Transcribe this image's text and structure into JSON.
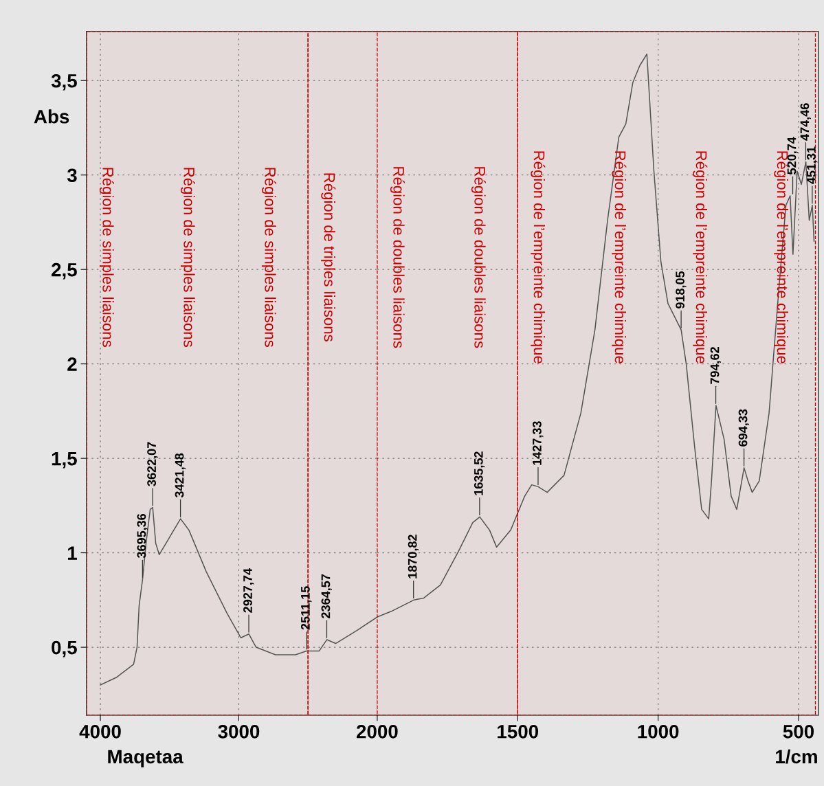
{
  "chart_data": [
    {
      "type": "line",
      "xlabel": "Maqetaa",
      "ylabel": "Abs",
      "xlim": [
        4100,
        2000
      ],
      "xticks": [
        4000,
        3000,
        2000
      ],
      "ylim": [
        0.14,
        3.76
      ],
      "yticks": [
        {
          "value": 0.5,
          "label": "0,5"
        },
        {
          "value": 1,
          "label": "1"
        },
        {
          "value": 1.5,
          "label": "1,5"
        },
        {
          "value": 2,
          "label": "2"
        },
        {
          "value": 2.5,
          "label": "2,5"
        },
        {
          "value": 3,
          "label": "3"
        },
        {
          "value": 3.5,
          "label": "3,5"
        }
      ],
      "grid": true,
      "x": [
        4000,
        3885,
        3760,
        3735,
        3720,
        3695,
        3670,
        3640,
        3622,
        3600,
        3575,
        3510,
        3421,
        3360,
        3235,
        3085,
        2985,
        2927,
        2875,
        2735,
        2590,
        2511,
        2420,
        2364,
        2300,
        2145,
        2000
      ],
      "series": [
        {
          "color": "#555555",
          "values": [
            0.3,
            0.34,
            0.41,
            0.5,
            0.72,
            0.86,
            1.05,
            1.23,
            1.24,
            1.05,
            0.99,
            1.07,
            1.18,
            1.12,
            0.9,
            0.68,
            0.55,
            0.57,
            0.5,
            0.46,
            0.46,
            0.48,
            0.48,
            0.54,
            0.52,
            0.59,
            0.66
          ]
        }
      ],
      "bands": [
        {
          "axis": "x",
          "from": 4100,
          "to": 2500,
          "label": "Région de simples liaisons",
          "color": "#cc0000"
        },
        {
          "axis": "x",
          "from": 2500,
          "to": 2000,
          "label": "Région de triples liaisons",
          "color": "#cc0000"
        }
      ],
      "annotations": [
        {
          "text": "3695,36",
          "x": 3695.36,
          "y": 0.86
        },
        {
          "text": "3622,07",
          "x": 3622.07,
          "y": 1.24
        },
        {
          "text": "3421,48",
          "x": 3421.48,
          "y": 1.18
        },
        {
          "text": "2927,74",
          "x": 2927.74,
          "y": 0.57
        },
        {
          "text": "2511,15",
          "x": 2511.15,
          "y": 0.48
        },
        {
          "text": "2364,57",
          "x": 2364.57,
          "y": 0.54
        },
        "Région de simples liaisons",
        "Région de simples liaisons"
      ]
    },
    {
      "type": "line",
      "xlabel": "1/cm",
      "tick_labels": "x",
      "xlim": [
        2000,
        430
      ],
      "xticks": [
        1500,
        1000,
        500
      ],
      "ylim": [
        0.14,
        3.76
      ],
      "yticks": [
        0.5,
        1,
        1.5,
        2,
        2.5,
        3,
        3.5
      ],
      "grid": true,
      "x": [
        2000,
        1950,
        1870,
        1835,
        1775,
        1710,
        1660,
        1635,
        1600,
        1575,
        1525,
        1475,
        1450,
        1427,
        1395,
        1335,
        1275,
        1225,
        1180,
        1140,
        1115,
        1090,
        1065,
        1040,
        1015,
        990,
        965,
        918,
        900,
        870,
        845,
        820,
        810,
        794,
        765,
        740,
        720,
        694,
        680,
        665,
        640,
        605,
        570,
        545,
        530,
        520,
        505,
        490,
        474,
        462,
        451,
        445
      ],
      "series": [
        {
          "color": "#555555",
          "values": [
            0.66,
            0.69,
            0.75,
            0.76,
            0.83,
            1.01,
            1.16,
            1.19,
            1.12,
            1.03,
            1.12,
            1.3,
            1.36,
            1.35,
            1.32,
            1.41,
            1.74,
            2.18,
            2.76,
            3.2,
            3.27,
            3.49,
            3.58,
            3.64,
            3.02,
            2.54,
            2.32,
            2.18,
            2.0,
            1.56,
            1.23,
            1.18,
            1.38,
            1.78,
            1.6,
            1.3,
            1.23,
            1.45,
            1.38,
            1.32,
            1.38,
            1.74,
            2.4,
            2.84,
            2.89,
            2.58,
            3.02,
            2.95,
            3.07,
            2.76,
            2.84,
            2.65
          ]
        }
      ],
      "bands": [
        {
          "axis": "x",
          "from": 2000,
          "to": 1500,
          "label": "Région de doubles liaisons",
          "color": "#cc0000"
        },
        {
          "axis": "x",
          "from": 1500,
          "to": 440,
          "label": "Région de l’empreinte chimique",
          "color": "#cc0000"
        }
      ],
      "annotations": [
        {
          "text": "1870,82",
          "x": 1870.82,
          "y": 0.75
        },
        {
          "text": "1635,52",
          "x": 1635.52,
          "y": 1.19
        },
        {
          "text": "1427,33",
          "x": 1427.33,
          "y": 1.35
        },
        {
          "text": "918,05",
          "x": 918.05,
          "y": 2.18
        },
        {
          "text": "794,62",
          "x": 794.62,
          "y": 1.78
        },
        {
          "text": "694,33",
          "x": 694.33,
          "y": 1.45
        },
        {
          "text": "520,74",
          "x": 520.74,
          "y": 2.89
        },
        {
          "text": "474,46",
          "x": 474.46,
          "y": 3.07
        },
        {
          "text": "451,31",
          "x": 451.31,
          "y": 2.84
        },
        "Région de doubles liaisons",
        "Région de l’empreinte chimique",
        "Région de l’empreinte chimique",
        "Région de l’empreinte chimique"
      ]
    }
  ]
}
